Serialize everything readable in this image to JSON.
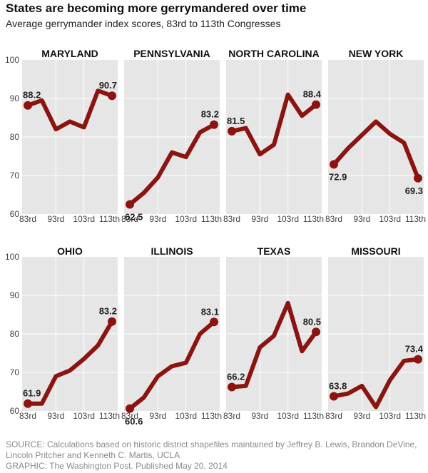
{
  "header": {
    "title": "States are becoming more gerrymandered over time",
    "subtitle": "Average gerrymander index scores, 83rd to 113th Congresses"
  },
  "colors": {
    "line": "#8b1410",
    "panel_bg": "#e6e6e6",
    "grid": "#ffffff"
  },
  "chart_data": {
    "type": "line",
    "ylim": [
      60,
      100
    ],
    "yticks": [
      60,
      70,
      80,
      90,
      100
    ],
    "xticks": [
      "83rd",
      "93rd",
      "103rd",
      "113th"
    ],
    "x_congresses": [
      83,
      88,
      93,
      98,
      103,
      108,
      113
    ],
    "panels": [
      {
        "name": "MARYLAND",
        "values": [
          88.2,
          89.5,
          82.0,
          84.0,
          82.5,
          92.0,
          90.7
        ],
        "start_label": "88.2",
        "end_label": "90.7"
      },
      {
        "name": "PENNSYLVANIA",
        "values": [
          62.5,
          65.5,
          69.5,
          76.0,
          74.8,
          81.2,
          83.2
        ],
        "start_label": "62.5",
        "end_label": "83.2"
      },
      {
        "name": "NORTH CAROLINA",
        "values": [
          81.5,
          82.3,
          75.5,
          78.0,
          91.0,
          85.5,
          88.4
        ],
        "start_label": "81.5",
        "end_label": "88.4"
      },
      {
        "name": "NEW YORK",
        "values": [
          72.9,
          77.0,
          80.5,
          84.0,
          80.8,
          78.5,
          69.3
        ],
        "start_label": "72.9",
        "end_label": "69.3"
      },
      {
        "name": "OHIO",
        "values": [
          61.9,
          61.9,
          69.0,
          70.5,
          73.5,
          77.0,
          83.2
        ],
        "start_label": "61.9",
        "end_label": "83.2"
      },
      {
        "name": "ILLINOIS",
        "values": [
          60.6,
          63.5,
          69.0,
          71.6,
          72.5,
          80.0,
          83.1
        ],
        "start_label": "60.6",
        "end_label": "83.1"
      },
      {
        "name": "TEXAS",
        "values": [
          66.2,
          66.5,
          76.5,
          79.5,
          88.0,
          75.5,
          80.5
        ],
        "start_label": "66.2",
        "end_label": "80.5"
      },
      {
        "name": "MISSOURI",
        "values": [
          63.8,
          64.5,
          66.5,
          61.0,
          68.0,
          73.0,
          73.4
        ],
        "start_label": "63.8",
        "end_label": "73.4"
      }
    ]
  },
  "footer": {
    "source": "SOURCE: Calculations based on historic district shapefiles maintained by Jeffrey B. Lewis, Brandon DeVine, Lincoln Pritcher and Kenneth C. Martis, UCLA",
    "credit": "GRAPHIC: The Washington Post. Published May 20, 2014"
  }
}
